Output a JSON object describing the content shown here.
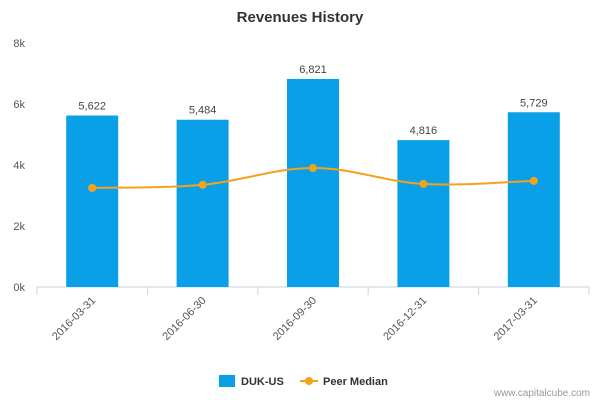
{
  "chart_data": {
    "type": "bar",
    "title": "Revenues History",
    "categories": [
      "2016-03-31",
      "2016-06-30",
      "2016-09-30",
      "2016-12-31",
      "2017-03-31"
    ],
    "series": [
      {
        "name": "DUK-US",
        "kind": "bar",
        "color": "#0aa0e8",
        "values": [
          5622,
          5484,
          6821,
          4816,
          5729
        ],
        "labels": [
          "5,622",
          "5,484",
          "6,821",
          "4,816",
          "5,729"
        ]
      },
      {
        "name": "Peer Median",
        "kind": "line",
        "color": "#f5a21b",
        "values": [
          3250,
          3350,
          3900,
          3380,
          3480
        ]
      }
    ],
    "ylim": [
      0,
      8000
    ],
    "yticks": [
      0,
      2000,
      4000,
      6000,
      8000
    ],
    "ytick_labels": [
      "0k",
      "2k",
      "4k",
      "6k",
      "8k"
    ],
    "grid": false,
    "legend_position": "bottom"
  },
  "credit": "www.capitalcube.com"
}
